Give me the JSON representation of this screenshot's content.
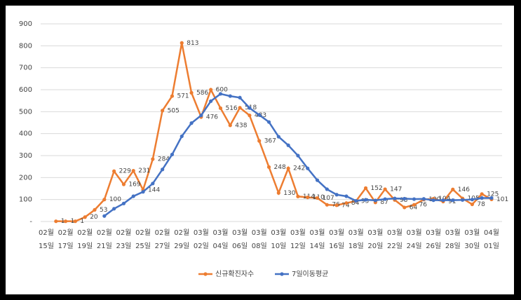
{
  "chart_data": {
    "type": "line",
    "categories": [
      "02월 15일",
      null,
      "02월 17일",
      null,
      "02월 19일",
      null,
      "02월 21일",
      null,
      "02월 23일",
      null,
      "02월 25일",
      null,
      "02월 27일",
      null,
      "02월 29일",
      null,
      "03월 02일",
      null,
      "03월 04일",
      null,
      "03월 06일",
      null,
      "03월 08일",
      null,
      "03월 10일",
      null,
      "03월 12일",
      null,
      "03월 14일",
      null,
      "03월 16일",
      null,
      "03월 18일",
      null,
      "03월 20일",
      null,
      "03월 22일",
      null,
      "03월 24일",
      null,
      "03월 26일",
      null,
      "03월 28일",
      null,
      "03월 30일",
      null,
      "04월 01일"
    ],
    "series": [
      {
        "name": "신규확진자수",
        "color": "#ed7d31",
        "data_labels": true,
        "values": [
          null,
          1,
          1,
          1,
          20,
          53,
          100,
          229,
          169,
          231,
          144,
          284,
          505,
          571,
          813,
          586,
          476,
          600,
          516,
          438,
          518,
          483,
          367,
          248,
          130,
          242,
          114,
          110,
          107,
          76,
          74,
          84,
          93,
          152,
          87,
          147,
          98,
          64,
          76,
          100,
          104,
          91,
          146,
          105,
          78,
          125,
          101
        ]
      },
      {
        "name": "7일이동평균",
        "color": "#4472c4",
        "data_labels": false,
        "values": [
          null,
          null,
          null,
          null,
          null,
          null,
          25,
          58,
          82,
          115,
          135,
          173,
          237,
          305,
          388,
          448,
          483,
          548,
          581,
          571,
          564,
          517,
          485,
          453,
          386,
          347,
          300,
          242,
          188,
          147,
          122,
          115,
          94,
          99,
          96,
          102,
          105,
          104,
          102,
          103,
          97,
          97,
          97,
          98,
          100,
          107,
          107
        ]
      }
    ],
    "ylim": [
      0,
      900
    ],
    "yticks": [
      {
        "value": 0,
        "label": "-"
      },
      100,
      200,
      300,
      400,
      500,
      600,
      700,
      800,
      900
    ],
    "grid": true,
    "legend": "bottom"
  }
}
